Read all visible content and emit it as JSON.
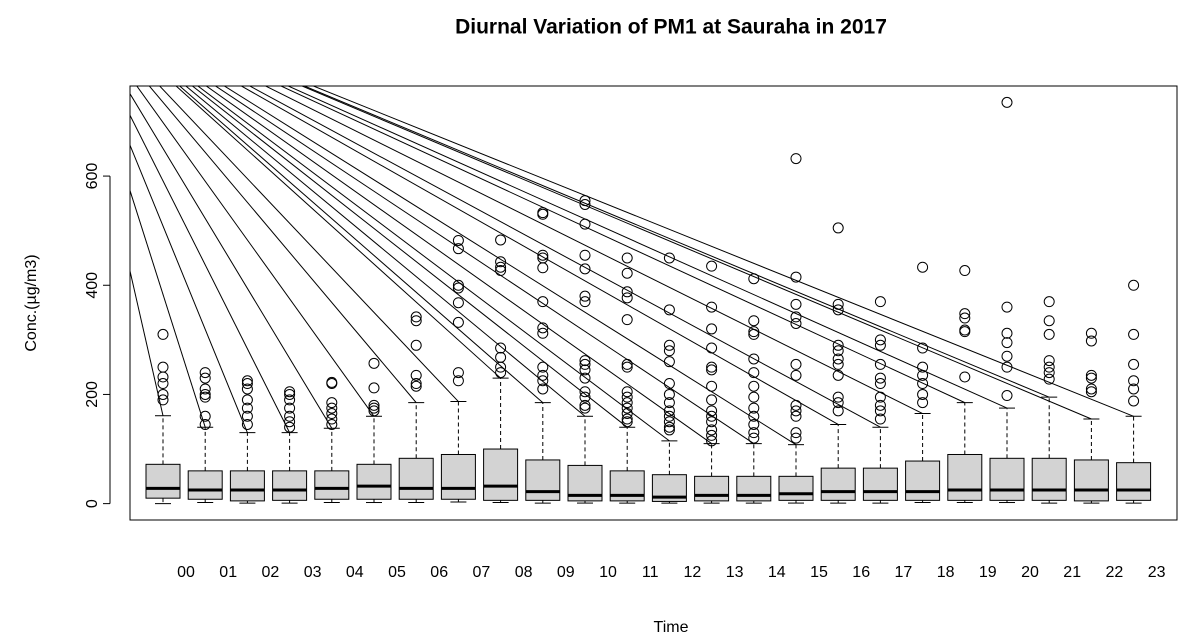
{
  "chart_data": {
    "type": "boxplot",
    "title": "Diurnal Variation of PM1 at Sauraha in 2017",
    "xlabel": "Time",
    "ylabel": "Conc.(µg/m3)",
    "ylim": [
      -30,
      765
    ],
    "yticks": [
      0,
      200,
      400,
      600
    ],
    "color": "#d3d3d3",
    "categories": [
      "00",
      "01",
      "02",
      "03",
      "04",
      "05",
      "06",
      "07",
      "08",
      "09",
      "10",
      "11",
      "12",
      "13",
      "14",
      "15",
      "16",
      "17",
      "18",
      "19",
      "20",
      "21",
      "22",
      "23"
    ],
    "boxes": [
      {
        "min": 0,
        "q1": 10,
        "median": 28,
        "q3": 72,
        "max": 161,
        "outliers": [
          310,
          250,
          232,
          220,
          200,
          190
        ]
      },
      {
        "min": 2,
        "q1": 8,
        "median": 25,
        "q3": 60,
        "max": 140,
        "outliers": [
          240,
          230,
          210,
          200,
          195,
          160,
          145
        ]
      },
      {
        "min": 1,
        "q1": 5,
        "median": 25,
        "q3": 60,
        "max": 130,
        "outliers": [
          225,
          220,
          210,
          190,
          175,
          160,
          145
        ]
      },
      {
        "min": 1,
        "q1": 6,
        "median": 25,
        "q3": 60,
        "max": 130,
        "outliers": [
          205,
          200,
          190,
          175,
          160,
          150,
          140
        ]
      },
      {
        "min": 2,
        "q1": 8,
        "median": 28,
        "q3": 60,
        "max": 138,
        "outliers": [
          222,
          220,
          185,
          175,
          165,
          155,
          145
        ]
      },
      {
        "min": 2,
        "q1": 8,
        "median": 32,
        "q3": 72,
        "max": 160,
        "outliers": [
          257,
          212,
          180,
          175,
          170
        ]
      },
      {
        "min": 2,
        "q1": 8,
        "median": 28,
        "q3": 83,
        "max": 185,
        "outliers": [
          342,
          335,
          290,
          235,
          220,
          215
        ]
      },
      {
        "min": 3,
        "q1": 8,
        "median": 28,
        "q3": 90,
        "max": 187,
        "outliers": [
          482,
          467,
          400,
          395,
          368,
          332,
          240,
          225
        ]
      },
      {
        "min": 2,
        "q1": 6,
        "median": 32,
        "q3": 100,
        "max": 230,
        "outliers": [
          483,
          443,
          433,
          427,
          285,
          268,
          250,
          240
        ]
      },
      {
        "min": 1,
        "q1": 6,
        "median": 22,
        "q3": 80,
        "max": 185,
        "outliers": [
          533,
          530,
          455,
          450,
          432,
          370,
          322,
          312,
          250,
          235,
          225,
          210
        ]
      },
      {
        "min": 1,
        "q1": 5,
        "median": 15,
        "q3": 70,
        "max": 160,
        "outliers": [
          555,
          548,
          512,
          455,
          430,
          380,
          370,
          262,
          255,
          245,
          230,
          205,
          195,
          180,
          175
        ]
      },
      {
        "min": 1,
        "q1": 5,
        "median": 15,
        "q3": 60,
        "max": 140,
        "outliers": [
          450,
          422,
          388,
          377,
          337,
          255,
          250,
          205,
          195,
          185,
          175,
          165,
          155,
          150
        ]
      },
      {
        "min": 1,
        "q1": 4,
        "median": 12,
        "q3": 53,
        "max": 115,
        "outliers": [
          450,
          355,
          290,
          280,
          260,
          220,
          200,
          185,
          170,
          160,
          150,
          140,
          135
        ]
      },
      {
        "min": 1,
        "q1": 5,
        "median": 15,
        "q3": 50,
        "max": 110,
        "outliers": [
          435,
          360,
          320,
          285,
          250,
          245,
          215,
          190,
          170,
          160,
          150,
          135,
          125,
          115
        ]
      },
      {
        "min": 1,
        "q1": 5,
        "median": 15,
        "q3": 50,
        "max": 110,
        "outliers": [
          412,
          335,
          315,
          310,
          265,
          240,
          215,
          195,
          175,
          160,
          145,
          130,
          120
        ]
      },
      {
        "min": 1,
        "q1": 6,
        "median": 18,
        "q3": 50,
        "max": 108,
        "outliers": [
          632,
          415,
          365,
          342,
          330,
          255,
          235,
          180,
          170,
          160,
          130,
          120
        ]
      },
      {
        "min": 1,
        "q1": 6,
        "median": 22,
        "q3": 65,
        "max": 145,
        "outliers": [
          505,
          365,
          355,
          290,
          280,
          265,
          255,
          235,
          195,
          185,
          170
        ]
      },
      {
        "min": 1,
        "q1": 6,
        "median": 22,
        "q3": 65,
        "max": 140,
        "outliers": [
          370,
          300,
          290,
          255,
          230,
          220,
          195,
          180,
          170,
          155
        ]
      },
      {
        "min": 2,
        "q1": 6,
        "median": 22,
        "q3": 78,
        "max": 165,
        "outliers": [
          433,
          285,
          250,
          235,
          220,
          200,
          185
        ]
      },
      {
        "min": 2,
        "q1": 6,
        "median": 25,
        "q3": 90,
        "max": 185,
        "outliers": [
          427,
          348,
          340,
          318,
          315,
          232
        ]
      },
      {
        "min": 2,
        "q1": 6,
        "median": 25,
        "q3": 83,
        "max": 175,
        "outliers": [
          735,
          360,
          312,
          295,
          270,
          250,
          198
        ]
      },
      {
        "min": 1,
        "q1": 6,
        "median": 25,
        "q3": 83,
        "max": 195,
        "outliers": [
          370,
          335,
          310,
          262,
          250,
          240,
          228
        ]
      },
      {
        "min": 1,
        "q1": 5,
        "median": 25,
        "q3": 80,
        "max": 155,
        "outliers": [
          312,
          298,
          235,
          230,
          210,
          205
        ]
      },
      {
        "min": 1,
        "q1": 6,
        "median": 25,
        "q3": 75,
        "max": 160,
        "outliers": [
          400,
          310,
          255,
          225,
          210,
          188
        ]
      }
    ]
  }
}
